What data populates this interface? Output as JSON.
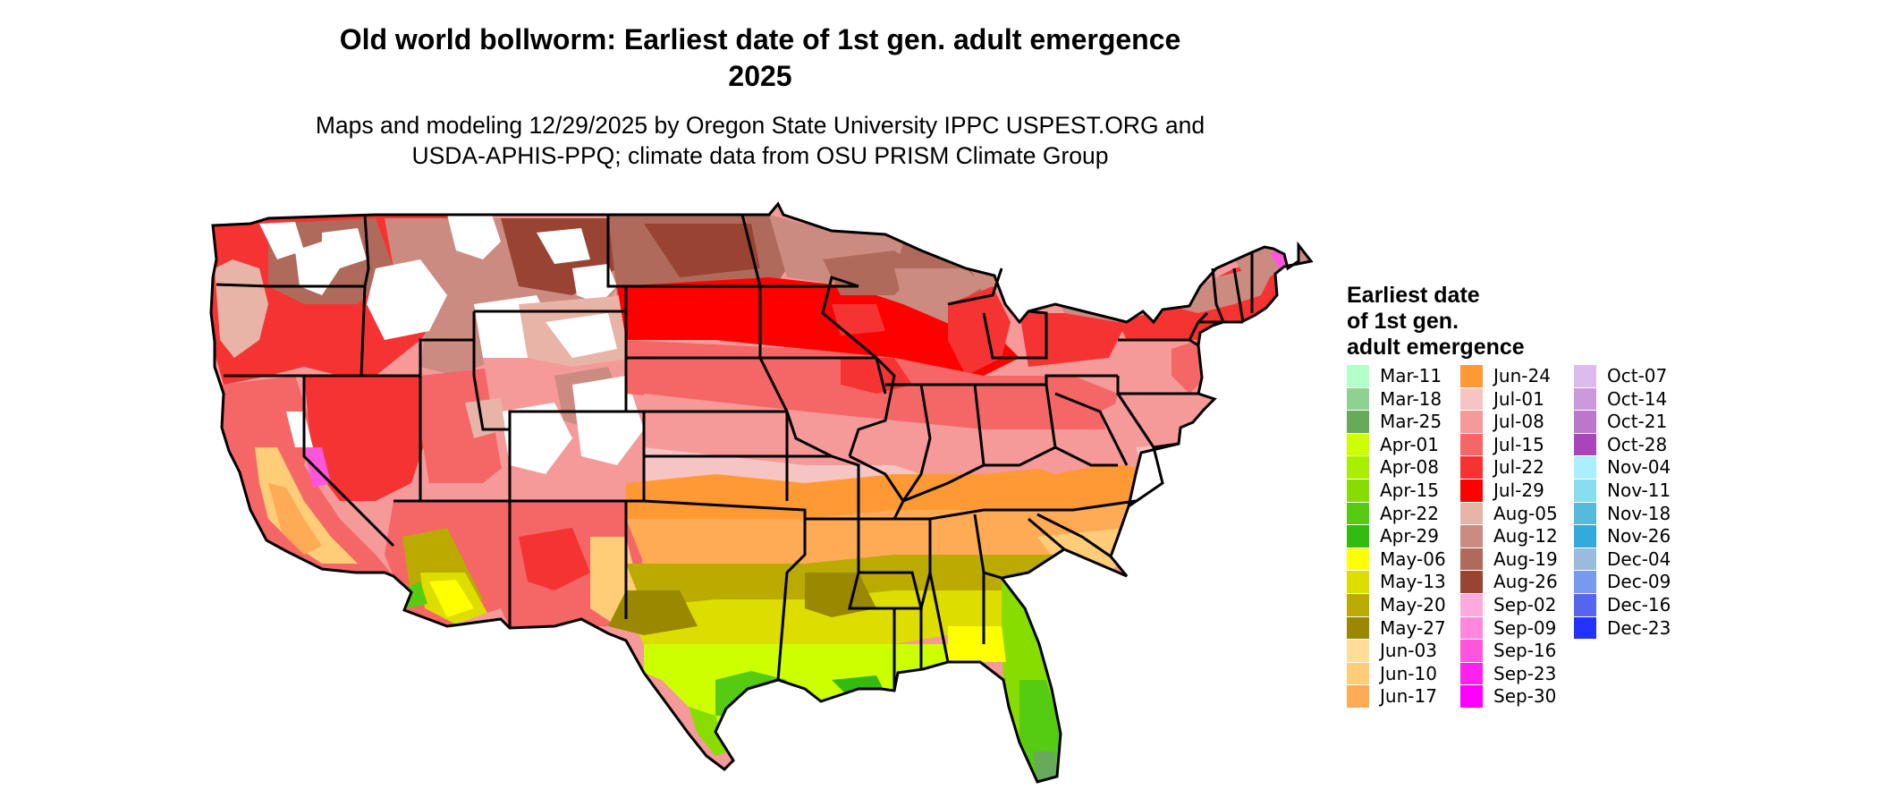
{
  "title_lines": [
    "Old world bollworm: Earliest date of 1st gen. adult emergence",
    "2025"
  ],
  "subtitle_lines": [
    "Maps and modeling 12/29/2025 by Oregon State University IPPC USPEST.ORG and",
    "USDA-APHIS-PPQ; climate data from OSU PRISM Climate Group"
  ],
  "legend": {
    "title_lines": [
      "Earliest date",
      "of 1st gen.",
      "adult emergence"
    ],
    "items": [
      {
        "label": "Mar-11",
        "color": "#b3ffcc"
      },
      {
        "label": "Mar-18",
        "color": "#8fd18f"
      },
      {
        "label": "Mar-25",
        "color": "#66aa5a"
      },
      {
        "label": "Apr-01",
        "color": "#ccff00"
      },
      {
        "label": "Apr-08",
        "color": "#aaef00"
      },
      {
        "label": "Apr-15",
        "color": "#88dd00"
      },
      {
        "label": "Apr-22",
        "color": "#55cc11"
      },
      {
        "label": "Apr-29",
        "color": "#33bb11"
      },
      {
        "label": "May-06",
        "color": "#ffff00"
      },
      {
        "label": "May-13",
        "color": "#dddd00"
      },
      {
        "label": "May-20",
        "color": "#bbaa00"
      },
      {
        "label": "May-27",
        "color": "#998800"
      },
      {
        "label": "Jun-03",
        "color": "#ffdd99"
      },
      {
        "label": "Jun-10",
        "color": "#ffcc77"
      },
      {
        "label": "Jun-17",
        "color": "#ffaa55"
      },
      {
        "label": "Jun-24",
        "color": "#ff9933"
      },
      {
        "label": "Jul-01",
        "color": "#f7c4c4"
      },
      {
        "label": "Jul-08",
        "color": "#f59999"
      },
      {
        "label": "Jul-15",
        "color": "#f56666"
      },
      {
        "label": "Jul-22",
        "color": "#f53333"
      },
      {
        "label": "Jul-29",
        "color": "#ff0000"
      },
      {
        "label": "Aug-05",
        "color": "#e8b4a8"
      },
      {
        "label": "Aug-12",
        "color": "#cc8b80"
      },
      {
        "label": "Aug-19",
        "color": "#b06a5c"
      },
      {
        "label": "Aug-26",
        "color": "#994433"
      },
      {
        "label": "Sep-02",
        "color": "#ffaadd"
      },
      {
        "label": "Sep-09",
        "color": "#ff88dd"
      },
      {
        "label": "Sep-16",
        "color": "#ff55dd"
      },
      {
        "label": "Sep-23",
        "color": "#ff22ee"
      },
      {
        "label": "Sep-30",
        "color": "#ff00ff"
      },
      {
        "label": "Oct-07",
        "color": "#ddbbee"
      },
      {
        "label": "Oct-14",
        "color": "#cc99dd"
      },
      {
        "label": "Oct-21",
        "color": "#bb77cc"
      },
      {
        "label": "Oct-28",
        "color": "#aa44bb"
      },
      {
        "label": "Nov-04",
        "color": "#aaeeff"
      },
      {
        "label": "Nov-11",
        "color": "#88ddee"
      },
      {
        "label": "Nov-18",
        "color": "#55bbdd"
      },
      {
        "label": "Nov-26",
        "color": "#33aadd"
      },
      {
        "label": "Dec-04",
        "color": "#99bbdd"
      },
      {
        "label": "Dec-09",
        "color": "#7799ee"
      },
      {
        "label": "Dec-16",
        "color": "#5566ee"
      },
      {
        "label": "Dec-23",
        "color": "#2233ff"
      }
    ]
  },
  "map_colors": {
    "background": "#ffffff",
    "border": "#000000",
    "unreached": "#ffffff"
  }
}
